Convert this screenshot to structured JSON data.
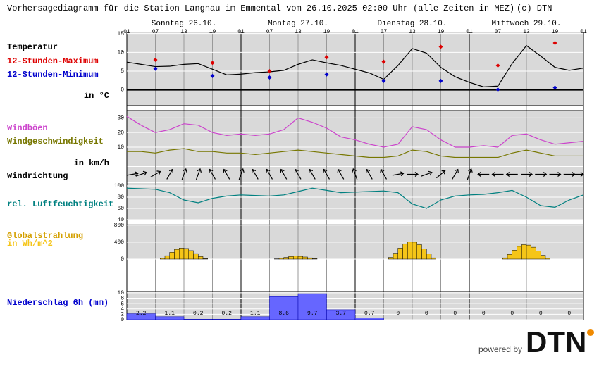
{
  "title": "Vorhersagediagramm für die Station Langnau im Emmental vom 26.10.2025 02:00 Uhr (alle Zeiten in MEZ)",
  "copyright": "(c) DTN",
  "days": [
    "Sonntag 26.10.",
    "Montag 27.10.",
    "Dienstag 28.10.",
    "Mittwoch 29.10."
  ],
  "hour_ticks": [
    "01",
    "07",
    "13",
    "19",
    "01",
    "07",
    "13",
    "19",
    "01",
    "07",
    "13",
    "19",
    "01",
    "07",
    "13",
    "19",
    "01"
  ],
  "footer": "powered by",
  "logo": "DTN",
  "chart_data": [
    {
      "type": "line",
      "unit_label": "in °C",
      "ylim": [
        -4.2,
        15.5
      ],
      "yticks": [
        0,
        5,
        10,
        15
      ],
      "series": [
        {
          "name": "Temperatur",
          "color": "#000000",
          "values": [
            7.4,
            6.8,
            6.2,
            6.3,
            6.8,
            7.0,
            5.5,
            4.0,
            4.2,
            4.6,
            4.8,
            5.2,
            6.8,
            8.0,
            7.2,
            6.5,
            5.5,
            4.5,
            2.8,
            6.5,
            11.0,
            9.8,
            6.0,
            3.5,
            2.0,
            0.8,
            1.0,
            7.0,
            11.8,
            9.0,
            6.0,
            5.2,
            5.8
          ]
        },
        {
          "name": "12-Stunden-Maximum",
          "color": "#dd0000",
          "values": [
            8.0,
            7.2,
            5.0,
            8.7,
            7.5,
            11.5,
            6.5,
            12.5
          ]
        },
        {
          "name": "12-Stunden-Minimum",
          "color": "#0000cc",
          "values": [
            5.6,
            3.7,
            3.3,
            4.1,
            2.4,
            2.4,
            0.1,
            0.6
          ]
        }
      ]
    },
    {
      "type": "line",
      "unit_label": "in km/h",
      "ylim": [
        -3,
        35
      ],
      "yticks": [
        10,
        20,
        30
      ],
      "series": [
        {
          "name": "Windböen",
          "color": "#cc44cc",
          "values": [
            31,
            25,
            20,
            22,
            26,
            25,
            20,
            18,
            19,
            18,
            19,
            22,
            30,
            27,
            23,
            17,
            15,
            12,
            10,
            12,
            24,
            22,
            15,
            10,
            10,
            11,
            10,
            18,
            19,
            15,
            12,
            13,
            14
          ]
        },
        {
          "name": "Windgeschwindigkeit",
          "color": "#777700",
          "values": [
            7,
            7,
            6,
            8,
            9,
            7,
            7,
            6,
            6,
            5,
            6,
            7,
            8,
            7,
            6,
            5,
            4,
            3,
            3,
            4,
            8,
            7,
            4,
            3,
            3,
            3,
            3,
            6,
            8,
            6,
            4,
            4,
            4
          ]
        }
      ]
    },
    {
      "type": "arrows",
      "name": "Windrichtung",
      "values": [
        80,
        70,
        60,
        30,
        20,
        20,
        330,
        330,
        20,
        330,
        330,
        330,
        330,
        330,
        330,
        330,
        340,
        330,
        330,
        80,
        90,
        70,
        50,
        30,
        20,
        270,
        270,
        270,
        90,
        90,
        90,
        90,
        90
      ]
    },
    {
      "type": "line",
      "ylim": [
        40,
        105
      ],
      "yticks": [
        40,
        60,
        80,
        100
      ],
      "series": [
        {
          "name": "rel. Luftfeuchtigkeit",
          "color": "#008080",
          "values": [
            96,
            95,
            94,
            88,
            75,
            70,
            78,
            82,
            84,
            83,
            82,
            84,
            90,
            96,
            92,
            88,
            89,
            90,
            91,
            88,
            68,
            60,
            75,
            82,
            84,
            85,
            88,
            92,
            80,
            65,
            62,
            75,
            84
          ]
        }
      ]
    },
    {
      "type": "hourbars",
      "name": "Globalstrahlung",
      "unit_label": "in Wh/m^2",
      "color": "#f5c518",
      "ylim": [
        0,
        830
      ],
      "yticks": [
        0,
        400,
        800
      ],
      "values": [
        0,
        20,
        80,
        160,
        230,
        260,
        250,
        200,
        130,
        60,
        10,
        0,
        0,
        5,
        20,
        40,
        60,
        70,
        65,
        50,
        30,
        10,
        0,
        0,
        0,
        40,
        140,
        260,
        360,
        410,
        400,
        340,
        240,
        120,
        30,
        0,
        0,
        30,
        110,
        210,
        300,
        340,
        330,
        280,
        190,
        90,
        20,
        0
      ]
    },
    {
      "type": "bar6h",
      "name": "Niederschlag 6h (mm)",
      "color": "#6666ff",
      "ylim": [
        0,
        10.5
      ],
      "yticks": [
        0,
        2,
        4,
        6,
        8,
        10
      ],
      "values": [
        2.2,
        1.1,
        0.2,
        0.2,
        1.1,
        8.6,
        9.7,
        3.7,
        0.7,
        0,
        0,
        0,
        0,
        0,
        0,
        0
      ]
    }
  ]
}
